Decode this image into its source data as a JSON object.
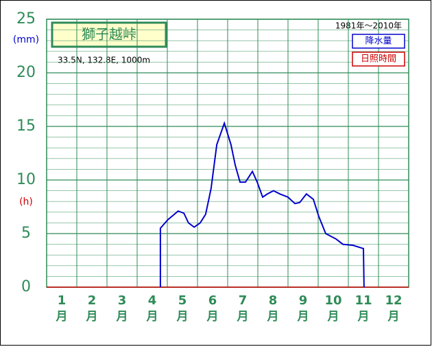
{
  "chart_data": {
    "type": "line",
    "title": "獅子越峠",
    "subtitle": "33.5N, 132.8E, 1000m",
    "period": "1981年～2010年",
    "y_unit_primary": "(mm)",
    "y_unit_secondary": "(h)",
    "legend": [
      {
        "name": "降水量",
        "color": "#0000cc"
      },
      {
        "name": "日照時間",
        "color": "#cc0000"
      }
    ],
    "categories": [
      "1",
      "2",
      "3",
      "4",
      "5",
      "6",
      "7",
      "8",
      "9",
      "10",
      "11",
      "12"
    ],
    "x_unit": "月",
    "xlim": [
      0,
      12
    ],
    "ylim": [
      0,
      25
    ],
    "yticks": [
      0,
      5,
      10,
      15,
      20,
      25
    ],
    "y_minor_ticks": [
      1,
      2,
      3,
      4,
      6,
      7,
      8,
      9,
      11,
      12,
      13,
      14,
      16,
      17,
      18,
      19,
      21,
      22,
      23,
      24
    ],
    "grid": true,
    "grid_color": "#2e8b57",
    "series": [
      {
        "name": "降水量",
        "color": "#0000cc",
        "x": [
          3.77,
          3.77,
          4.02,
          4.36,
          4.55,
          4.7,
          4.89,
          5.09,
          5.27,
          5.45,
          5.64,
          5.89,
          6.11,
          6.25,
          6.41,
          6.59,
          6.82,
          6.98,
          7.16,
          7.32,
          7.52,
          7.73,
          8.0,
          8.23,
          8.39,
          8.61,
          8.84,
          9.02,
          9.25,
          9.59,
          9.82,
          10.16,
          10.5,
          10.52
        ],
        "values": [
          0,
          5.5,
          6.3,
          7.1,
          6.9,
          6.0,
          5.6,
          6.0,
          6.8,
          9.2,
          13.3,
          15.3,
          13.3,
          11.4,
          9.8,
          9.8,
          10.8,
          9.8,
          8.4,
          8.7,
          9.0,
          8.7,
          8.4,
          7.8,
          7.9,
          8.7,
          8.2,
          6.6,
          5.0,
          4.5,
          4.0,
          3.9,
          3.6,
          0
        ]
      }
    ]
  }
}
